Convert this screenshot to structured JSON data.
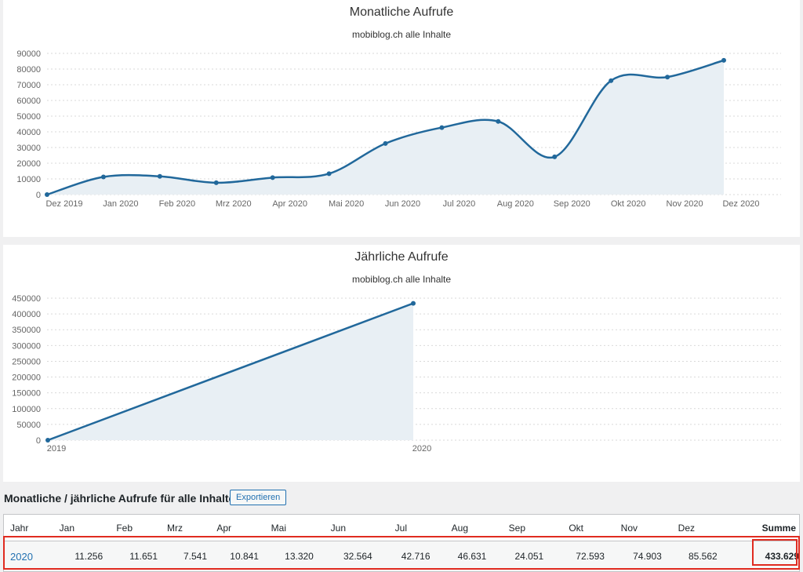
{
  "monthly_chart": {
    "title": "Monatliche Aufrufe",
    "subtitle": "mobiblog.ch alle Inhalte",
    "chart_data": {
      "type": "area",
      "title": "Monatliche Aufrufe",
      "subtitle": "mobiblog.ch alle Inhalte",
      "categories": [
        "Dez 2019",
        "Jan 2020",
        "Feb 2020",
        "Mrz 2020",
        "Apr 2020",
        "Mai 2020",
        "Jun 2020",
        "Jul 2020",
        "Aug 2020",
        "Sep 2020",
        "Okt 2020",
        "Nov 2020",
        "Dez 2020"
      ],
      "series": [
        {
          "values": [
            0,
            11256,
            11651,
            7541,
            10841,
            13320,
            32564,
            42716,
            46631,
            24051,
            72593,
            74903,
            85562
          ]
        }
      ],
      "ylim": [
        0,
        90000
      ],
      "yticks": [
        "0",
        "10000",
        "20000",
        "30000",
        "40000",
        "50000",
        "60000",
        "70000",
        "80000",
        "90000"
      ],
      "grid": true,
      "line_color": "#21689b",
      "fill_color": "#e8eff4"
    }
  },
  "yearly_chart": {
    "title": "Jährliche Aufrufe",
    "subtitle": "mobiblog.ch alle Inhalte",
    "chart_data": {
      "type": "area",
      "title": "Jährliche Aufrufe",
      "subtitle": "mobiblog.ch alle Inhalte",
      "categories": [
        "2019",
        "2020"
      ],
      "series": [
        {
          "values": [
            0,
            433629
          ]
        }
      ],
      "ylim": [
        0,
        450000
      ],
      "yticks": [
        "0",
        "50000",
        "100000",
        "150000",
        "200000",
        "250000",
        "300000",
        "350000",
        "400000",
        "450000"
      ],
      "grid": true,
      "line_color": "#21689b",
      "fill_color": "#e8eff4"
    }
  },
  "table": {
    "title": "Monatliche / jährliche Aufrufe für alle Inhalte",
    "export_label": "Exportieren",
    "headers": [
      "Jahr",
      "Jan",
      "Feb",
      "Mrz",
      "Apr",
      "Mai",
      "Jun",
      "Jul",
      "Aug",
      "Sep",
      "Okt",
      "Nov",
      "Dez",
      "Summe"
    ],
    "rows": [
      {
        "year": "2020",
        "values": [
          "11.256",
          "11.651",
          "7.541",
          "10.841",
          "13.320",
          "32.564",
          "42.716",
          "46.631",
          "24.051",
          "72.593",
          "74.903",
          "85.562"
        ],
        "sum": "433.629"
      }
    ]
  },
  "colors": {
    "accent": "#2271b1",
    "highlight": "#e02b20"
  }
}
